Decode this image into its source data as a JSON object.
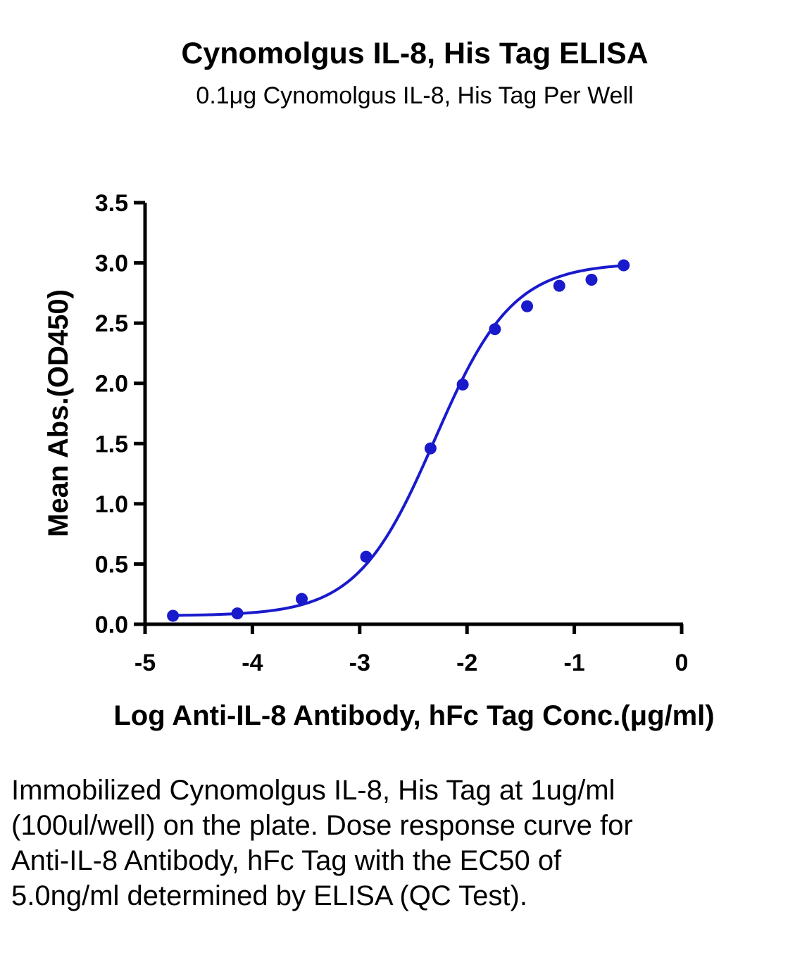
{
  "chart_data": {
    "type": "scatter",
    "title": "Cynomolgus IL-8, His Tag ELISA",
    "subtitle": "0.1μg Cynomolgus IL-8, His Tag Per Well",
    "xlabel": "Log  Anti-IL-8 Antibody, hFc Tag Conc.(μg/ml)",
    "ylabel": "Mean Abs.(OD450)",
    "xlim": [
      -5,
      0
    ],
    "ylim": [
      0,
      3.5
    ],
    "x_ticks": [
      "-5",
      "-4",
      "-3",
      "-2",
      "-1",
      "0"
    ],
    "y_ticks": [
      "0.0",
      "0.5",
      "1.0",
      "1.5",
      "2.0",
      "2.5",
      "3.0",
      "3.5"
    ],
    "grid": false,
    "color": "#1a1acd",
    "series": [
      {
        "points": [
          {
            "x": -4.74,
            "y": 0.07
          },
          {
            "x": -4.14,
            "y": 0.09
          },
          {
            "x": -3.54,
            "y": 0.21
          },
          {
            "x": -2.94,
            "y": 0.56
          },
          {
            "x": -2.34,
            "y": 1.46
          },
          {
            "x": -2.04,
            "y": 1.99
          },
          {
            "x": -1.74,
            "y": 2.45
          },
          {
            "x": -1.44,
            "y": 2.64
          },
          {
            "x": -1.14,
            "y": 2.81
          },
          {
            "x": -0.84,
            "y": 2.86
          },
          {
            "x": -0.54,
            "y": 2.98
          }
        ],
        "fit": {
          "model": "4PL",
          "bottom": 0.07,
          "top": 3.0,
          "log_ec50": -2.3,
          "hill_slope": 1.2
        }
      }
    ]
  },
  "caption": "Immobilized Cynomolgus IL-8, His Tag at 1ug/ml (100ul/well) on the plate. Dose response curve for Anti-IL-8 Antibody, hFc Tag with the EC50 of 5.0ng/ml determined by ELISA (QC Test)."
}
